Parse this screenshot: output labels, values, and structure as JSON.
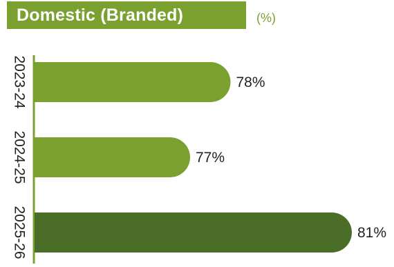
{
  "header": {
    "title": "Domestic (Branded)",
    "unit": "(%)"
  },
  "colors": {
    "title_bg": "#7aa12f",
    "axis": "#7aa12f",
    "bars": [
      "#7aa12f",
      "#7aa12f",
      "#4a6e27"
    ]
  },
  "chart_data": {
    "type": "bar",
    "orientation": "horizontal",
    "title": "Domestic (Branded)",
    "subtitle": "(%)",
    "categories": [
      "2023-24",
      "2024-25",
      "2025-26"
    ],
    "values": [
      78,
      77,
      81
    ],
    "value_labels": [
      "78%",
      "77%",
      "81%"
    ],
    "xlabel": "",
    "ylabel": "",
    "xlim": [
      65,
      82
    ],
    "grid": false,
    "legend": "none"
  }
}
